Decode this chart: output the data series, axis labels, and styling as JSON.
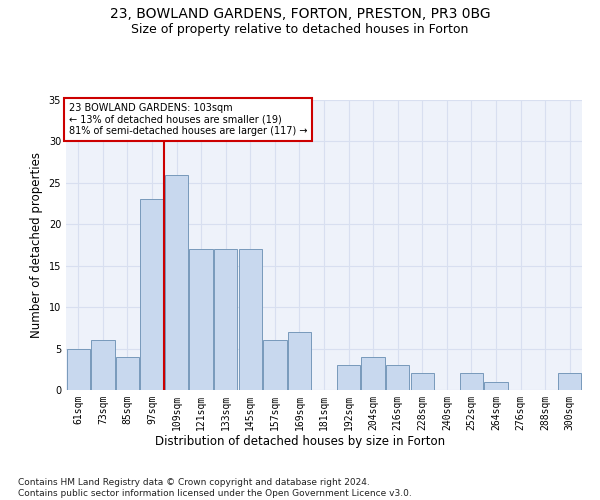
{
  "title1": "23, BOWLAND GARDENS, FORTON, PRESTON, PR3 0BG",
  "title2": "Size of property relative to detached houses in Forton",
  "xlabel": "Distribution of detached houses by size in Forton",
  "ylabel": "Number of detached properties",
  "categories": [
    "61sqm",
    "73sqm",
    "85sqm",
    "97sqm",
    "109sqm",
    "121sqm",
    "133sqm",
    "145sqm",
    "157sqm",
    "169sqm",
    "181sqm",
    "192sqm",
    "204sqm",
    "216sqm",
    "228sqm",
    "240sqm",
    "252sqm",
    "264sqm",
    "276sqm",
    "288sqm",
    "300sqm"
  ],
  "values": [
    5,
    6,
    4,
    23,
    26,
    17,
    17,
    17,
    6,
    7,
    0,
    3,
    4,
    3,
    2,
    0,
    2,
    1,
    0,
    0,
    2
  ],
  "bar_color": "#c8d8ee",
  "bar_edge_color": "#7799bb",
  "vline_color": "#cc0000",
  "vline_x": 3.5,
  "annotation_text": "23 BOWLAND GARDENS: 103sqm\n← 13% of detached houses are smaller (19)\n81% of semi-detached houses are larger (117) →",
  "annotation_box_color": "#ffffff",
  "annotation_box_edge": "#cc0000",
  "ylim": [
    0,
    35
  ],
  "yticks": [
    0,
    5,
    10,
    15,
    20,
    25,
    30,
    35
  ],
  "footnote": "Contains HM Land Registry data © Crown copyright and database right 2024.\nContains public sector information licensed under the Open Government Licence v3.0.",
  "bg_color": "#eef2fa",
  "grid_color": "#d8dff0",
  "title_fontsize": 10,
  "subtitle_fontsize": 9,
  "axis_label_fontsize": 8.5,
  "tick_fontsize": 7,
  "footnote_fontsize": 6.5
}
